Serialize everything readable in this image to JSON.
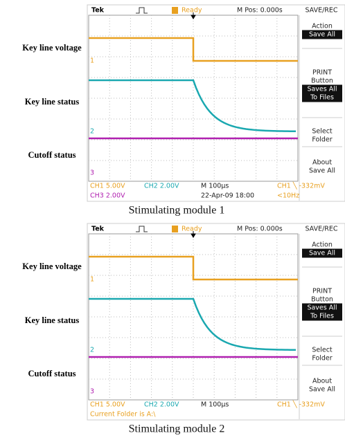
{
  "panels": [
    {
      "labels": [
        "Key line voltage",
        "Key line status",
        "Cutoff status"
      ],
      "brand": "Tek",
      "status": "Ready",
      "position": "M Pos: 0.000s",
      "menu_title": "SAVE/REC",
      "menu": [
        {
          "title": [
            "Action"
          ],
          "highlight": [
            "Save All"
          ]
        },
        {
          "title": [
            "PRINT",
            "Button"
          ],
          "highlight": [
            "Saves All",
            "To Files"
          ]
        },
        {
          "title": [
            "Select",
            "Folder"
          ]
        },
        {
          "title": [
            "About",
            "Save All"
          ]
        }
      ],
      "channel_markers": [
        "1",
        "2",
        "3"
      ],
      "footer_row1": [
        {
          "text": "CH1  5.00V",
          "color": "#e8a020"
        },
        {
          "text": "CH2  2.00V",
          "color": "#1aa8b0"
        },
        {
          "text": "M 100µs",
          "color": "#222222"
        },
        {
          "text": "CH1 ╲ -332mV",
          "color": "#e8a020"
        }
      ],
      "footer_row2": [
        {
          "text": "CH3  2.00V",
          "color": "#b020b0"
        },
        {
          "text": "22-Apr-09 18:00",
          "color": "#222222"
        },
        {
          "text": "<10Hz",
          "color": "#e8a020"
        }
      ],
      "caption": "Stimulating module 1"
    },
    {
      "labels": [
        "Key line voltage",
        "Key line status",
        "Cutoff status"
      ],
      "brand": "Tek",
      "status": "Ready",
      "position": "M Pos: 0.000s",
      "menu_title": "SAVE/REC",
      "menu": [
        {
          "title": [
            "Action"
          ],
          "highlight": [
            "Save All"
          ]
        },
        {
          "title": [
            "PRINT",
            "Button"
          ],
          "highlight": [
            "Saves All",
            "To Files"
          ]
        },
        {
          "title": [
            "Select",
            "Folder"
          ]
        },
        {
          "title": [
            "About",
            "Save All"
          ]
        }
      ],
      "channel_markers": [
        "1",
        "2",
        "3"
      ],
      "footer_row1": [
        {
          "text": "CH1  5.00V",
          "color": "#e8a020"
        },
        {
          "text": "CH2  2.00V",
          "color": "#1aa8b0"
        },
        {
          "text": "M 100µs",
          "color": "#222222"
        },
        {
          "text": "CH1 ╲ -332mV",
          "color": "#e8a020"
        }
      ],
      "footer_row2": [
        {
          "text": "Current Folder is A:\\",
          "color": "#e8a020"
        }
      ],
      "caption": "Stimulating module 2"
    }
  ]
}
